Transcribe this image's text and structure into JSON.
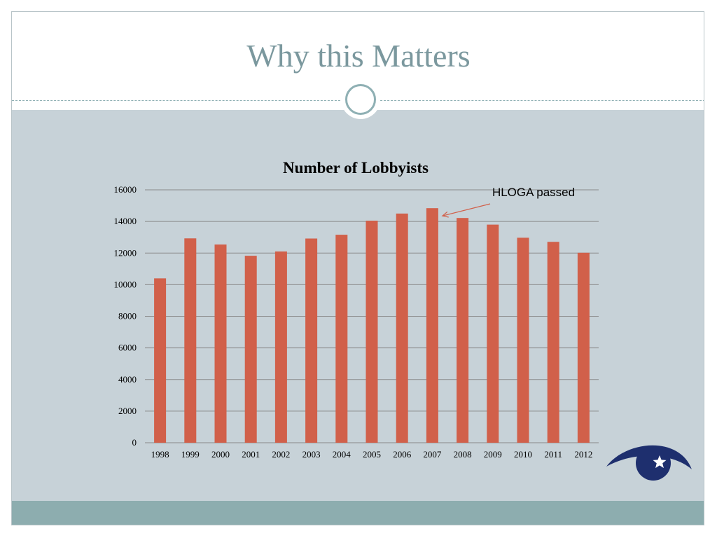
{
  "slide": {
    "title": "Why this Matters"
  },
  "colors": {
    "title": "#7b989e",
    "panel": "#c7d2d8",
    "bar": "#d1604a",
    "footer": "#8dadaf",
    "logo": "#1e2f6e"
  },
  "icons": {
    "ornament": "circle-ornament-icon",
    "logo": "eye-star-logo-icon"
  },
  "chart_data": {
    "type": "bar",
    "title": "Number of Lobbyists",
    "xlabel": "",
    "ylabel": "",
    "categories": [
      "1998",
      "1999",
      "2000",
      "2001",
      "2002",
      "2003",
      "2004",
      "2005",
      "2006",
      "2007",
      "2008",
      "2009",
      "2010",
      "2011",
      "2012"
    ],
    "values": [
      10400,
      12930,
      12540,
      11830,
      12100,
      12920,
      13160,
      14050,
      14500,
      14840,
      14220,
      13800,
      12970,
      12710,
      12020
    ],
    "ylim": [
      0,
      16000
    ],
    "yticks": [
      0,
      2000,
      4000,
      6000,
      8000,
      10000,
      12000,
      14000,
      16000
    ],
    "grid": true,
    "legend": "none",
    "annotation": {
      "text": "HLOGA passed",
      "target_category": "2007"
    }
  }
}
